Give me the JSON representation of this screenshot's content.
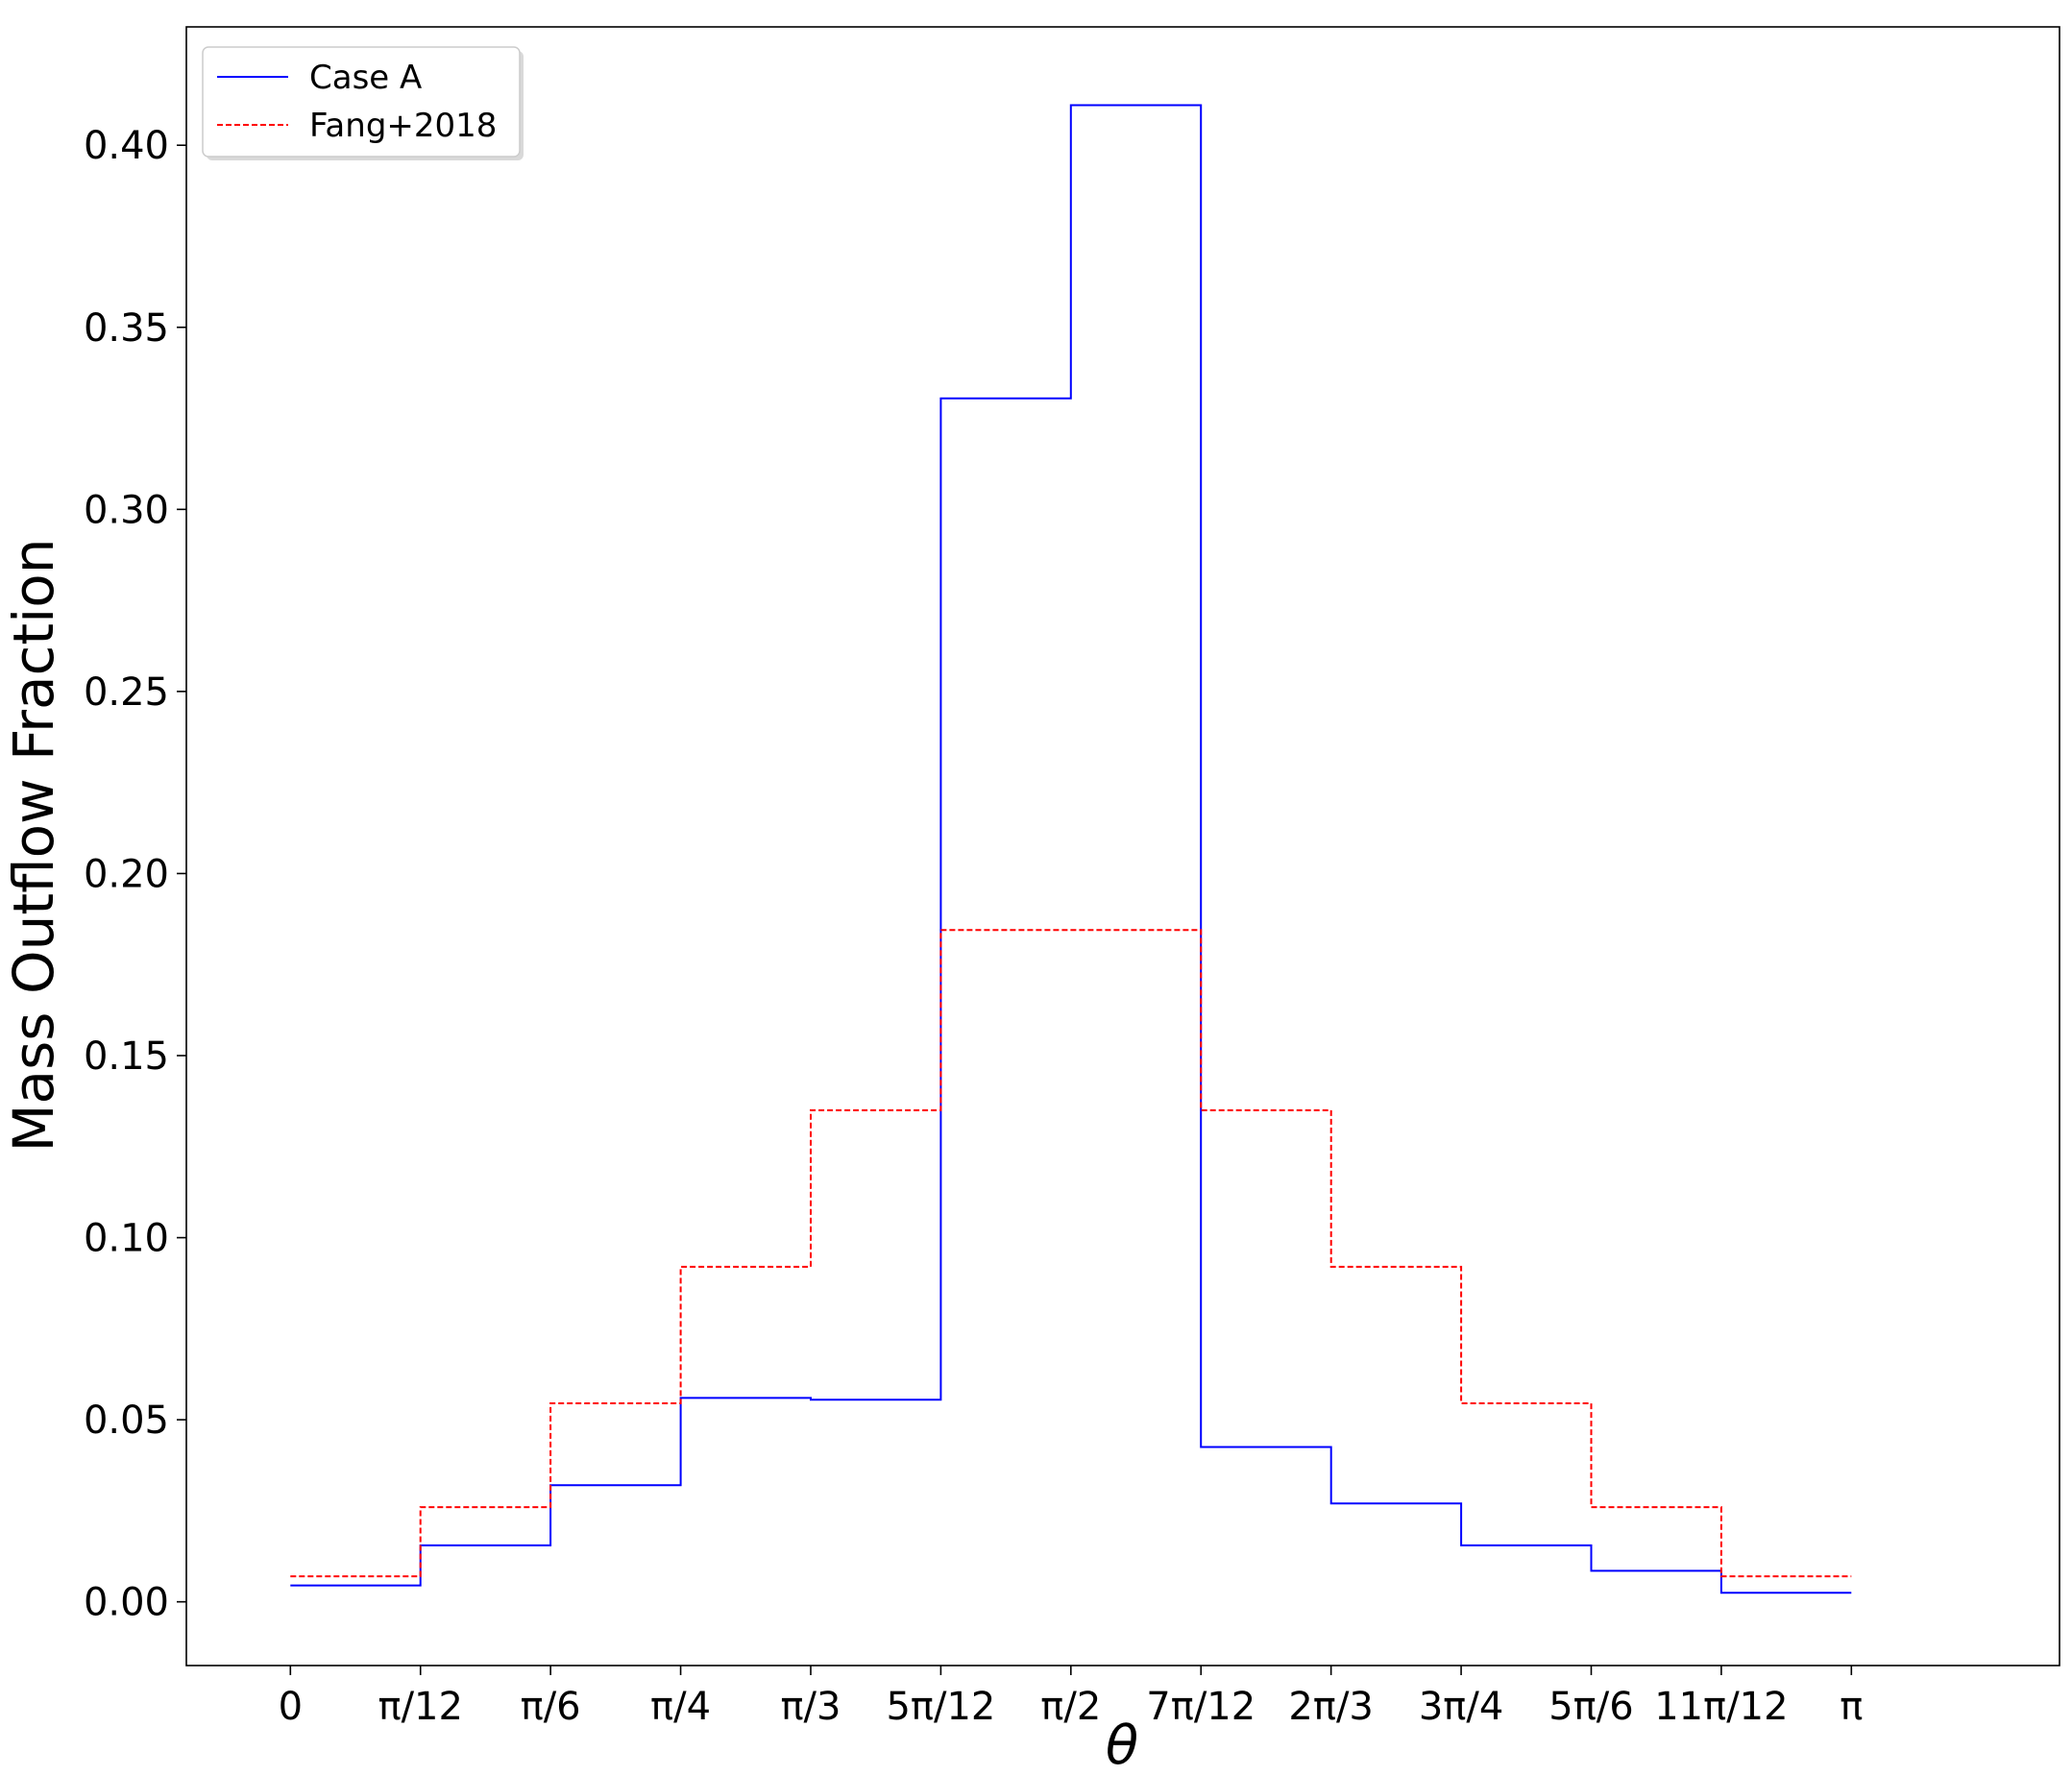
{
  "chart_data": {
    "type": "line",
    "drawstyle": "steps",
    "xlabel": "θ",
    "ylabel": "Mass Outflow Fraction",
    "xlim": [
      -0.2094,
      3.5605
    ],
    "ylim": [
      -0.0175,
      0.4325
    ],
    "x_bin_edges": [
      0,
      0.2618,
      0.5236,
      0.7854,
      1.0472,
      1.309,
      1.5708,
      1.8326,
      2.0944,
      2.3562,
      2.618,
      2.8798,
      3.1416
    ],
    "xticks": [
      0,
      0.2618,
      0.5236,
      0.7854,
      1.0472,
      1.309,
      1.5708,
      1.8326,
      2.0944,
      2.3562,
      2.618,
      2.8798,
      3.1416
    ],
    "xtick_labels": [
      "0",
      "π/12",
      "π/6",
      "π/4",
      "π/3",
      "5π/12",
      "π/2",
      "7π/12",
      "2π/3",
      "3π/4",
      "5π/6",
      "11π/12",
      "π"
    ],
    "yticks": [
      0.0,
      0.05,
      0.1,
      0.15,
      0.2,
      0.25,
      0.3,
      0.35,
      0.4
    ],
    "ytick_labels": [
      "0.00",
      "0.05",
      "0.10",
      "0.15",
      "0.20",
      "0.25",
      "0.30",
      "0.35",
      "0.40"
    ],
    "series": [
      {
        "name": "Case A",
        "color": "#0000ff",
        "style": "solid",
        "values": [
          0.0045,
          0.0155,
          0.032,
          0.056,
          0.0555,
          0.3305,
          0.411,
          0.0425,
          0.027,
          0.0155,
          0.0085,
          0.0025
        ]
      },
      {
        "name": "Fang+2018",
        "color": "#ff0000",
        "style": "dashed",
        "values": [
          0.007,
          0.026,
          0.0545,
          0.092,
          0.135,
          0.1845,
          0.1845,
          0.135,
          0.092,
          0.0545,
          0.026,
          0.007
        ]
      }
    ],
    "legend": "top-left",
    "grid": false
  }
}
